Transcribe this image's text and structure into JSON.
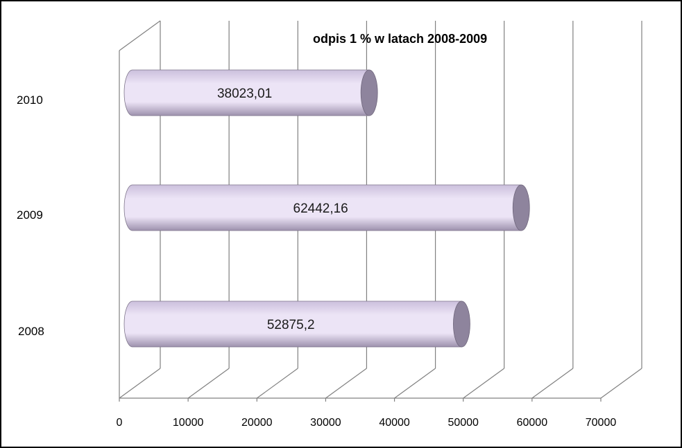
{
  "chart_data": {
    "type": "bar",
    "orientation": "horizontal",
    "style": "3d-cylinder",
    "title": "odpis 1 % w latach 2008-2009",
    "categories": [
      "2008",
      "2009",
      "2010"
    ],
    "values": [
      52875.2,
      62442.16,
      38023.01
    ],
    "value_labels": [
      "52875,2",
      "62442,16",
      "38023,01"
    ],
    "x_ticks": [
      "0",
      "10000",
      "20000",
      "30000",
      "40000",
      "50000",
      "60000",
      "70000"
    ],
    "xlim": [
      0,
      70000
    ],
    "grid": true,
    "legend": "none",
    "colors": {
      "bar_light": "#ece4f6",
      "bar_mid": "#cbbfdc",
      "bar_dark": "#9d91ad",
      "bar_cap": "#8e849d",
      "grid": "#808080"
    }
  }
}
